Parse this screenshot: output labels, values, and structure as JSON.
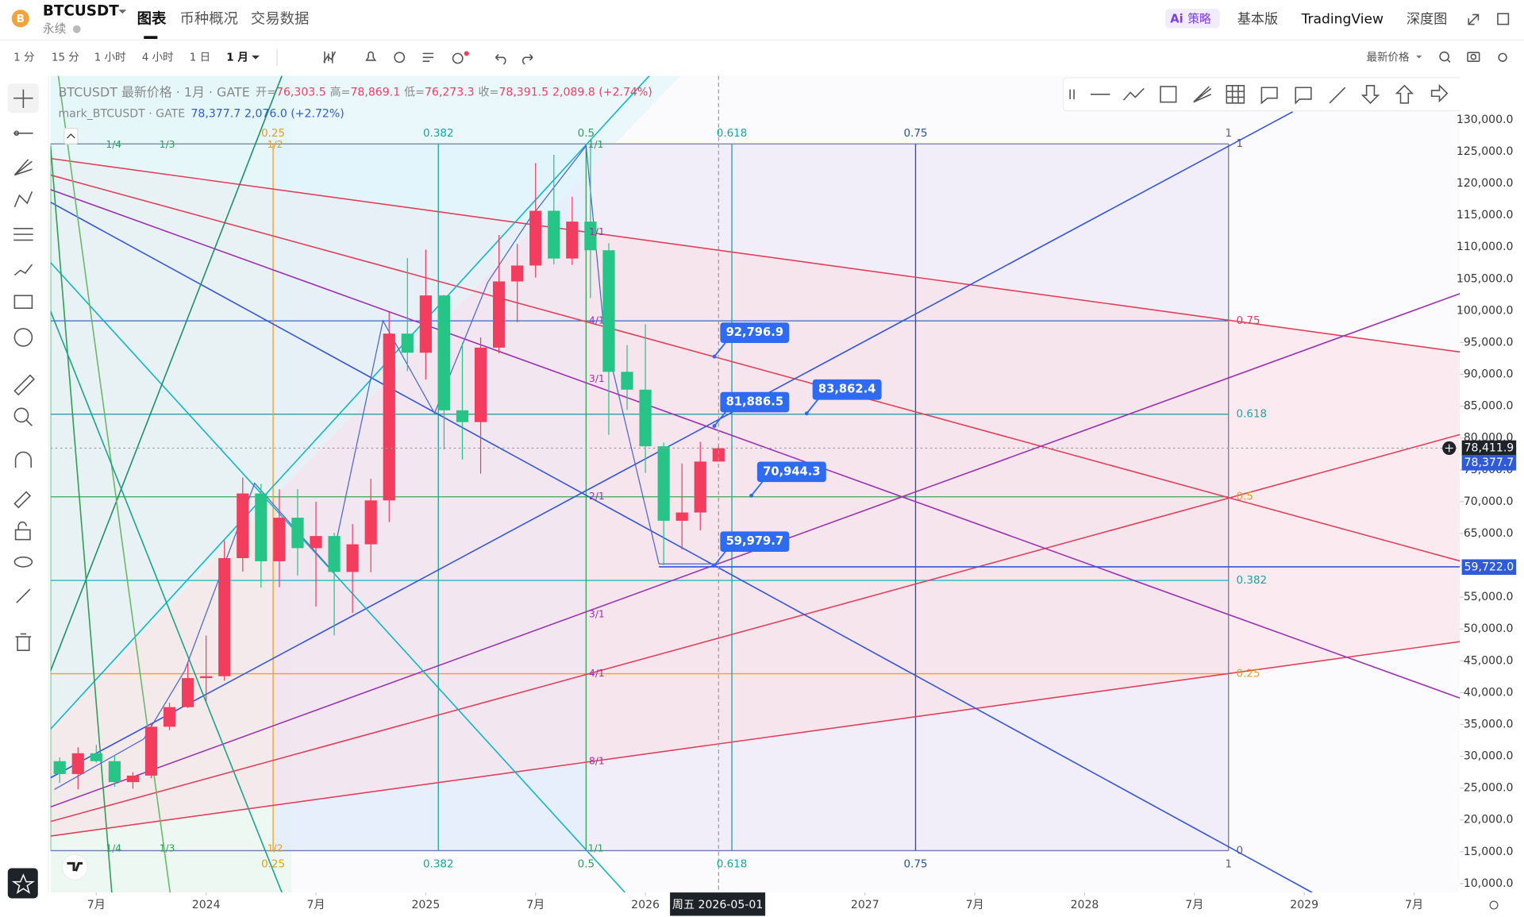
{
  "header": {
    "symbol": "BTCUSDT",
    "contract": "永续",
    "tabs": [
      "图表",
      "币种概况",
      "交易数据"
    ],
    "ai": "Ai",
    "strategy": "策略",
    "menu": [
      "基本版",
      "TradingView",
      "深度图"
    ]
  },
  "toolbar": {
    "intervals": [
      "1 分",
      "15 分",
      "1 小时",
      "4 小时",
      "1 日",
      "1 月"
    ],
    "price_type": "最新价格"
  },
  "legend": {
    "title": "BTCUSDT 最新价格 · 1月 · GATE",
    "ohlc": [
      {
        "label": "开=",
        "value": "76,303.5"
      },
      {
        "label": "高=",
        "value": "78,869.1"
      },
      {
        "label": "低=",
        "value": "76,273.3"
      },
      {
        "label": "收=",
        "value": "78,391.5"
      }
    ],
    "change": "2,089.8 (+2.74%)",
    "mark_title": "mark_BTCUSDT · GATE",
    "mark_value": "78,377.7",
    "mark_change": "2,076.0 (+2.72%)"
  },
  "chart_data": {
    "type": "candlestick",
    "up_color": "#f23d5e",
    "down_color": "#26c487",
    "x": [
      "2023-05",
      "2023-06",
      "2023-07",
      "2023-08",
      "2023-09",
      "2023-10",
      "2023-11",
      "2023-12",
      "2024-01",
      "2024-02",
      "2024-03",
      "2024-04",
      "2024-05",
      "2024-06",
      "2024-07",
      "2024-08",
      "2024-09",
      "2024-10",
      "2024-11",
      "2024-12",
      "2025-01",
      "2025-02",
      "2025-03",
      "2025-04",
      "2025-05",
      "2025-06",
      "2025-07",
      "2025-08",
      "2025-09",
      "2025-10",
      "2025-11",
      "2025-12",
      "2026-01",
      "2026-02",
      "2026-03",
      "2026-04",
      "2026-05"
    ],
    "open": [
      29230,
      27210,
      30470,
      29230,
      25940,
      26960,
      34640,
      37720,
      42280,
      42580,
      61130,
      71290,
      60640,
      67480,
      62700,
      64600,
      58960,
      63300,
      70200,
      96400,
      93400,
      102400,
      84350,
      82500,
      94200,
      104600,
      107100,
      115700,
      108200,
      114000,
      109500,
      90400,
      87600,
      78700,
      67000,
      68300,
      76303.5
    ],
    "high": [
      29820,
      31400,
      31800,
      30200,
      27500,
      35200,
      38400,
      44700,
      48970,
      63900,
      73800,
      72800,
      71950,
      71980,
      70000,
      65100,
      66500,
      73600,
      99800,
      108300,
      109600,
      102500,
      95000,
      95800,
      111900,
      110500,
      123200,
      124500,
      117900,
      126200,
      110600,
      94600,
      97900,
      79300,
      76000,
      79400,
      78869.1
    ],
    "low": [
      25810,
      24800,
      29000,
      25200,
      24900,
      26550,
      34100,
      37600,
      38500,
      41880,
      59000,
      56500,
      56550,
      58400,
      53500,
      49000,
      52500,
      58900,
      66800,
      90500,
      89200,
      78200,
      76600,
      74400,
      93300,
      98200,
      105200,
      107300,
      107200,
      102000,
      80500,
      84400,
      74500,
      60000,
      62500,
      65500,
      76273.3
    ],
    "close": [
      27210,
      30470,
      29230,
      25940,
      26960,
      34640,
      37720,
      42280,
      42580,
      61130,
      71290,
      60640,
      67480,
      62700,
      64600,
      58960,
      63300,
      70200,
      96400,
      93400,
      102400,
      84350,
      82500,
      94200,
      104600,
      107100,
      115700,
      108200,
      114000,
      109500,
      90400,
      87600,
      78700,
      67000,
      68300,
      76300,
      78391.5
    ],
    "xlim": [
      "2023-05",
      "2029-09"
    ],
    "xticks": [
      {
        "value": "2023-07",
        "label": "7月"
      },
      {
        "value": "2024-01",
        "label": "2024"
      },
      {
        "value": "2024-07",
        "label": "7月"
      },
      {
        "value": "2025-01",
        "label": "2025"
      },
      {
        "value": "2025-07",
        "label": "7月"
      },
      {
        "value": "2026-01",
        "label": "2026"
      },
      {
        "value": "2027-01",
        "label": "2027"
      },
      {
        "value": "2027-07",
        "label": "7月"
      },
      {
        "value": "2028-01",
        "label": "2028"
      },
      {
        "value": "2028-07",
        "label": "7月"
      },
      {
        "value": "2029-01",
        "label": "2029"
      },
      {
        "value": "2029-07",
        "label": "7月"
      }
    ],
    "ylim": [
      8600,
      136900
    ],
    "yticks": [
      {
        "value": 10000,
        "label": "10,000.0"
      },
      {
        "value": 15000,
        "label": "15,000.0"
      },
      {
        "value": 20000,
        "label": "20,000.0"
      },
      {
        "value": 25000,
        "label": "25,000.0"
      },
      {
        "value": 30000,
        "label": "30,000.0"
      },
      {
        "value": 35000,
        "label": "35,000.0"
      },
      {
        "value": 40000,
        "label": "40,000.0"
      },
      {
        "value": 45000,
        "label": "45,000.0"
      },
      {
        "value": 50000,
        "label": "50,000.0"
      },
      {
        "value": 55000,
        "label": "55,000.0"
      },
      {
        "value": 60000,
        "label": "60,000.0"
      },
      {
        "value": 65000,
        "label": "65,000.0"
      },
      {
        "value": 70000,
        "label": "70,000.0"
      },
      {
        "value": 75000,
        "label": "75,000.0"
      },
      {
        "value": 80000,
        "label": "80,000.0"
      },
      {
        "value": 85000,
        "label": "85,000.0"
      },
      {
        "value": 90000,
        "label": "90,000.0"
      },
      {
        "value": 95000,
        "label": "95,000.0"
      },
      {
        "value": 100000,
        "label": "100,000.0"
      },
      {
        "value": 105000,
        "label": "105,000.0"
      },
      {
        "value": 110000,
        "label": "110,000.0"
      },
      {
        "value": 115000,
        "label": "115,000.0"
      },
      {
        "value": 120000,
        "label": "120,000.0"
      },
      {
        "value": 125000,
        "label": "125,000.0"
      },
      {
        "value": 130000,
        "label": "130,000.0"
      }
    ],
    "price_labels": [
      {
        "value": 92796.9,
        "label": "92,796.9"
      },
      {
        "value": 81886.5,
        "label": "81,886.5"
      },
      {
        "value": 83862.4,
        "label": "83,862.4"
      },
      {
        "value": 70944.3,
        "label": "70,944.3"
      },
      {
        "value": 59979.7,
        "label": "59,979.7"
      }
    ],
    "axis_markers": [
      {
        "value": 78411.9,
        "label": "78,411.9"
      },
      {
        "value": 78377.7,
        "label": "78,377.7"
      },
      {
        "value": 59722,
        "label": "59,722.0"
      }
    ],
    "crosshair_x": "周五 2026-05-01"
  },
  "drawings": {
    "fib_top": [
      "0.25",
      "0.382",
      "0.5",
      "0.618",
      "0.75",
      "1"
    ],
    "fan_top": [
      "1/4",
      "1/3",
      "1/2",
      "1/1"
    ],
    "fib_bottom": [
      "0.25",
      "0.382",
      "0.5",
      "0.618",
      "0.75",
      "1"
    ],
    "fan_bottom": [
      "1/4",
      "1/3",
      "1/2",
      "1/1"
    ],
    "fib_right": [
      "1",
      "0.75",
      "0.618",
      "0.5",
      "0.382",
      "0.25",
      "0"
    ],
    "gann": [
      "1/1",
      "4/1",
      "3/1",
      "2/1",
      "3/1",
      "4/1",
      "8/1"
    ]
  }
}
